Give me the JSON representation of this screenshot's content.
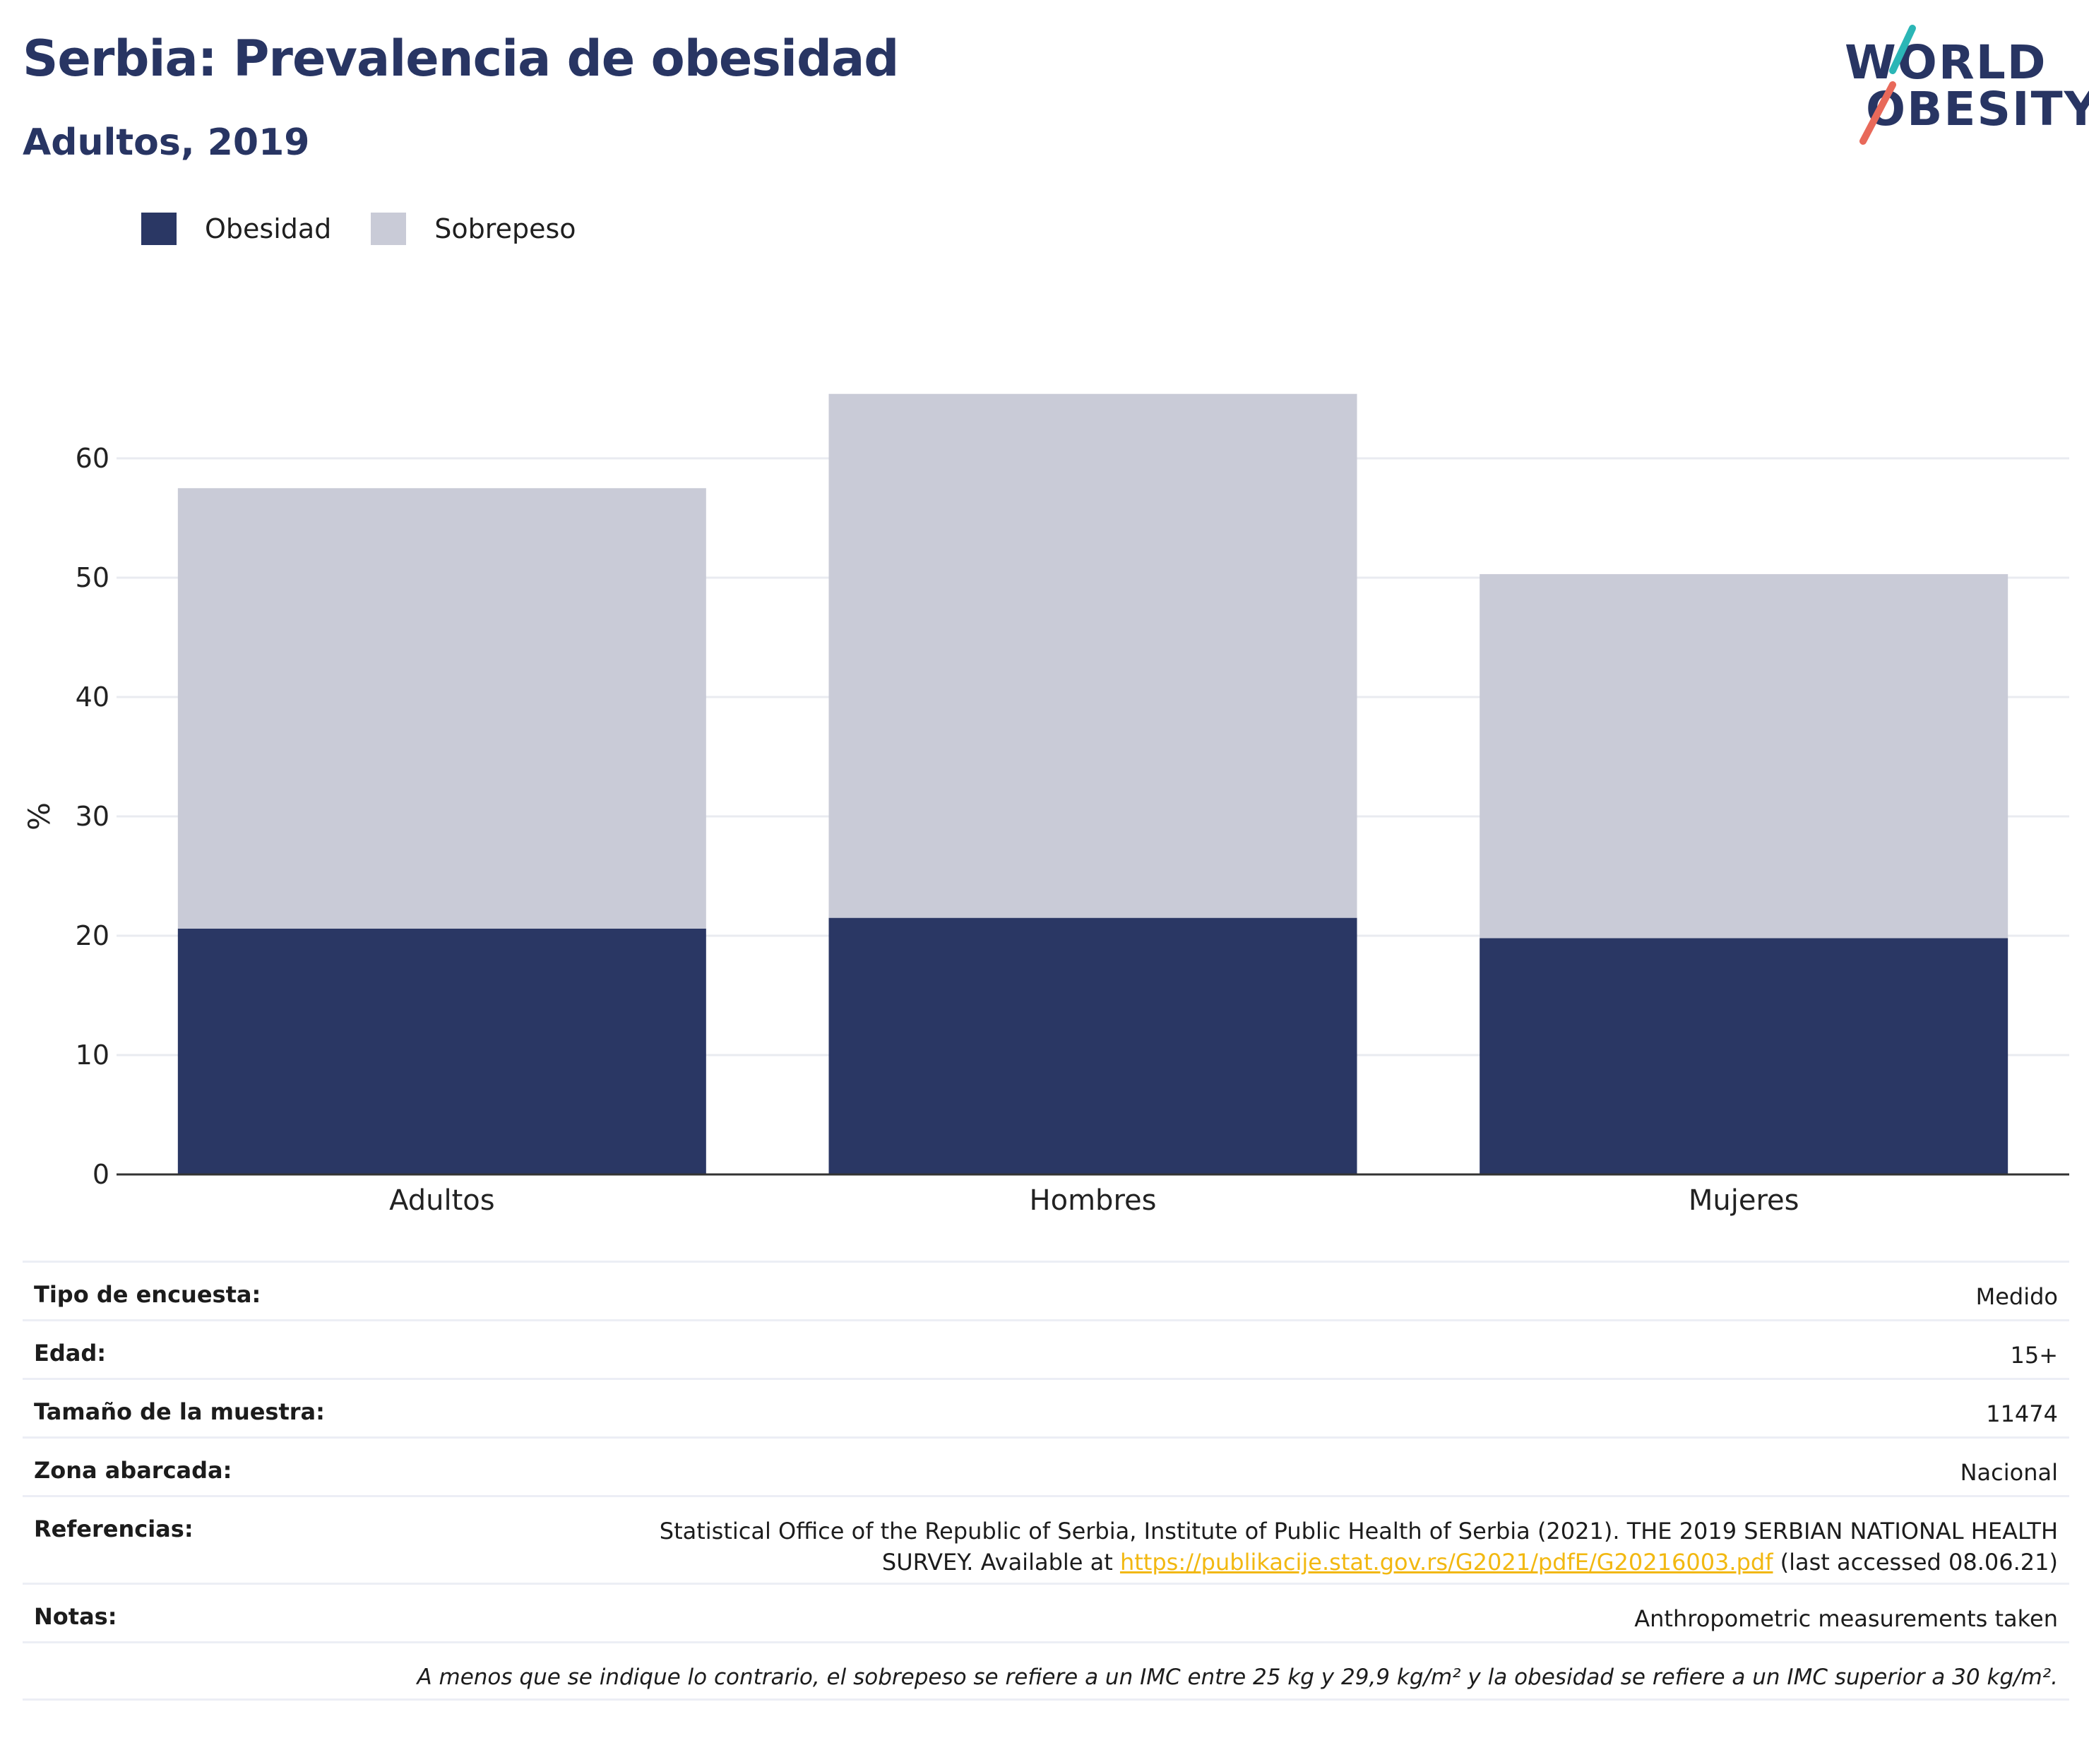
{
  "header": {
    "title": "Serbia: Prevalencia de obesidad",
    "subtitle": "Adultos, 2019"
  },
  "logo": {
    "line1": "WORLD",
    "line2": "OBESITY",
    "colors": {
      "navy": "#283563",
      "teal": "#2bb6b6",
      "coral": "#e8695a"
    }
  },
  "legend": [
    {
      "label": "Obesidad",
      "color": "#2a3764"
    },
    {
      "label": "Sobrepeso",
      "color": "#c9cbd7"
    }
  ],
  "chart_data": {
    "type": "bar",
    "stacked": true,
    "categories": [
      "Adultos",
      "Hombres",
      "Mujeres"
    ],
    "series": [
      {
        "name": "Obesidad",
        "values": [
          20.6,
          21.5,
          19.8
        ],
        "color": "#2a3764"
      },
      {
        "name": "Sobrepeso",
        "values": [
          36.9,
          43.9,
          30.5
        ],
        "color": "#c9cbd7"
      }
    ],
    "ylabel": "%",
    "xlabel": "",
    "ylim": [
      0,
      70
    ],
    "yticks": [
      0,
      10,
      20,
      30,
      40,
      50,
      60
    ],
    "grid": true,
    "legend_position": "top-left"
  },
  "meta": {
    "rows": [
      {
        "key": "Tipo de encuesta:",
        "value": "Medido"
      },
      {
        "key": "Edad:",
        "value": "15+"
      },
      {
        "key": "Tamaño de la muestra:",
        "value": "11474"
      },
      {
        "key": "Zona abarcada:",
        "value": "Nacional"
      }
    ],
    "references": {
      "key": "Referencias:",
      "line1": "Statistical Office of the Republic of Serbia, Institute of Public Health of Serbia (2021). THE 2019 SERBIAN NATIONAL HEALTH",
      "line2_prefix": "SURVEY. Available at ",
      "link": "https://publikacije.stat.gov.rs/G2021/pdfE/G20216003.pdf",
      "line2_suffix": " (last accessed 08.06.21)"
    },
    "notes": {
      "key": "Notas:",
      "value": "Anthropometric measurements taken"
    },
    "footnote": "A menos que se indique lo contrario, el sobrepeso se refiere a un IMC entre 25 kg y 29,9 kg/m² y la obesidad se refiere a un IMC superior a 30 kg/m²."
  }
}
